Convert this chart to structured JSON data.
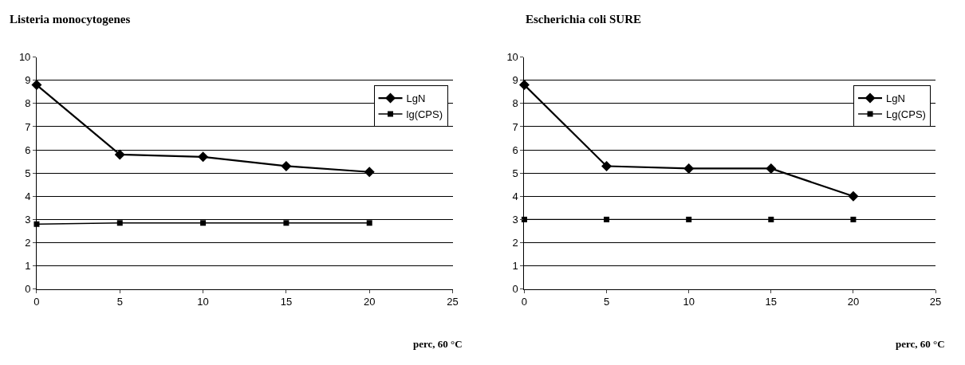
{
  "chart_data": [
    {
      "type": "line",
      "title": "Listeria monocytogenes",
      "xlabel": "perc, 60 °C",
      "x": [
        0,
        5,
        10,
        15,
        20
      ],
      "xlim": [
        0,
        25
      ],
      "xticks": [
        0,
        5,
        10,
        15,
        20,
        25
      ],
      "ylim": [
        0,
        10
      ],
      "yticks": [
        0,
        1,
        2,
        3,
        4,
        5,
        6,
        7,
        8,
        9,
        10
      ],
      "grid": "y",
      "legend": "top right",
      "line_style": "solid",
      "series": [
        {
          "name": "LgN",
          "color": "#000000",
          "marker": "diamond",
          "values": [
            8.8,
            5.8,
            5.7,
            5.3,
            5.05
          ]
        },
        {
          "name": "lg(CPS)",
          "color": "#000000",
          "marker": "square",
          "values": [
            2.8,
            2.85,
            2.85,
            2.85,
            2.85
          ]
        }
      ]
    },
    {
      "type": "line",
      "title": "Escherichia coli SURE",
      "xlabel": "perc, 60 °C",
      "x": [
        0,
        5,
        10,
        15,
        20
      ],
      "xlim": [
        0,
        25
      ],
      "xticks": [
        0,
        5,
        10,
        15,
        20,
        25
      ],
      "ylim": [
        0,
        10
      ],
      "yticks": [
        0,
        1,
        2,
        3,
        4,
        5,
        6,
        7,
        8,
        9,
        10
      ],
      "grid": "y",
      "legend": "top right",
      "line_style": "solid",
      "series": [
        {
          "name": "LgN",
          "color": "#000000",
          "marker": "diamond",
          "values": [
            8.8,
            5.3,
            5.2,
            5.2,
            4.0
          ]
        },
        {
          "name": "Lg(CPS)",
          "color": "#000000",
          "marker": "square",
          "values": [
            3.0,
            3.0,
            3.0,
            3.0,
            3.0
          ]
        }
      ]
    }
  ]
}
